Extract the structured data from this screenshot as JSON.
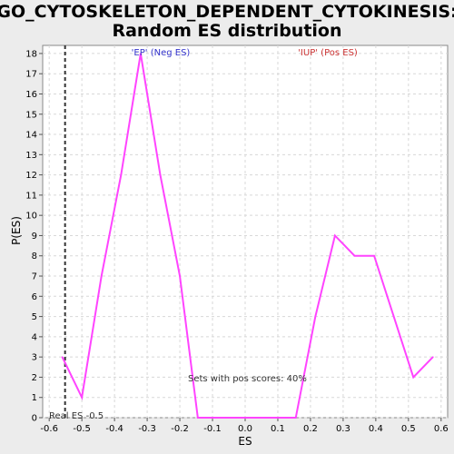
{
  "chart_data": {
    "type": "line",
    "title_line1": "GO_CYTOSKELETON_DEPENDENT_CYTOKINESIS:",
    "title_line2": "Random ES distribution",
    "xlabel": "ES",
    "ylabel": "P(ES)",
    "xlim": [
      -0.62,
      0.62
    ],
    "ylim": [
      0,
      18.4
    ],
    "x_ticks": [
      "-0.6",
      "-0.5",
      "-0.4",
      "-0.3",
      "-0.2",
      "-0.1",
      "0.0",
      "0.1",
      "0.2",
      "0.3",
      "0.4",
      "0.5",
      "0.6"
    ],
    "y_ticks": [
      "0",
      "1",
      "2",
      "3",
      "4",
      "5",
      "6",
      "7",
      "8",
      "9",
      "10",
      "11",
      "12",
      "13",
      "14",
      "15",
      "16",
      "17",
      "18"
    ],
    "grid": true,
    "series": [
      {
        "color": "#ff44ff",
        "x": [
          -0.56,
          -0.5,
          -0.44,
          -0.38,
          -0.32,
          -0.26,
          -0.2,
          -0.145,
          -0.085,
          -0.025,
          0.035,
          0.095,
          0.155,
          0.215,
          0.275,
          0.335,
          0.395,
          0.455,
          0.515,
          0.575
        ],
        "y": [
          3,
          1,
          7,
          12,
          18,
          12,
          7,
          0,
          0,
          0,
          0,
          0,
          0,
          5,
          9,
          8,
          8,
          5,
          2,
          3
        ]
      }
    ],
    "real_es": -0.5,
    "real_es_label": "Real ES -0.5",
    "annotations": {
      "neg_label": "'EP' (Neg ES)",
      "pos_label": "'IUP' (Pos ES)",
      "pos_scores": "Sets with pos scores: 40%"
    },
    "colors": {
      "neg": "#3333cc",
      "pos": "#cc3333",
      "line": "#ff44ff",
      "grid": "#d8d8d8"
    }
  }
}
